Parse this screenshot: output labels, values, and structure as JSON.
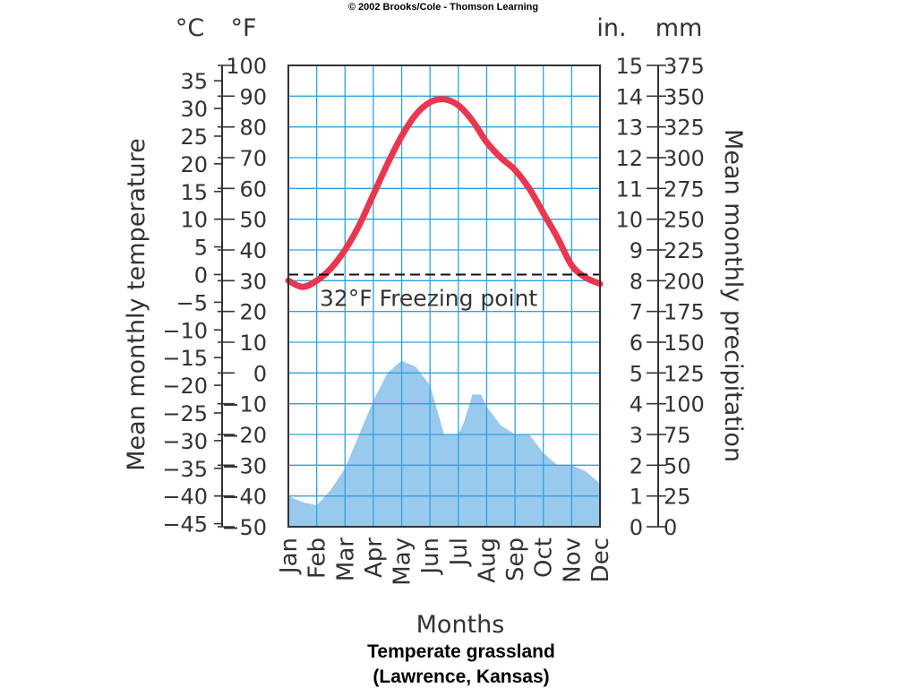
{
  "copyright": "© 2002 Brooks/Cole - Thomson Learning",
  "caption": {
    "line1": "Temperate grassland",
    "line2": "(Lawrence, Kansas)"
  },
  "colors": {
    "grid": "#2aa3df",
    "temperature_line": "#e8374f",
    "precipitation_fill": "#99c9ec",
    "axis": "#333333"
  },
  "chart_data": {
    "type": "line",
    "xlabel": "Months",
    "categories": [
      "Jan",
      "Feb",
      "Mar",
      "Apr",
      "May",
      "Jun",
      "Jul",
      "Aug",
      "Sep",
      "Oct",
      "Nov",
      "Dec"
    ],
    "left_axis": {
      "label": "Mean monthly temperature",
      "unit_celsius": "°C",
      "unit_fahrenheit": "°F",
      "celsius_ticks": [
        "35",
        "30",
        "25",
        "20",
        "15",
        "10",
        "5",
        "0",
        "−5",
        "−10",
        "−15",
        "−20",
        "−25",
        "−30",
        "−35",
        "−40",
        "−45"
      ],
      "fahrenheit_ticks": [
        "100",
        "90",
        "80",
        "70",
        "60",
        "50",
        "40",
        "30",
        "20",
        "10",
        "0",
        "−10",
        "−20",
        "−30",
        "−40",
        "−50"
      ],
      "fahrenheit_range": [
        -50,
        100
      ]
    },
    "right_axis": {
      "label": "Mean monthly precipitation",
      "unit_inches": "in.",
      "unit_mm": "mm",
      "inch_ticks": [
        "15",
        "14",
        "13",
        "12",
        "11",
        "10",
        "9",
        "8",
        "7",
        "6",
        "5",
        "4",
        "3",
        "2",
        "1",
        "0"
      ],
      "mm_ticks": [
        "375",
        "350",
        "325",
        "300",
        "275",
        "250",
        "225",
        "200",
        "175",
        "150",
        "125",
        "100",
        "75",
        "50",
        "25",
        "0"
      ],
      "inch_range": [
        0,
        15
      ]
    },
    "freezing_line": {
      "value_f": 32,
      "label": "32°F Freezing point"
    },
    "series": [
      {
        "kind": "line",
        "x": [
          0,
          0.5,
          1,
          1.5,
          2,
          2.5,
          3,
          3.5,
          4,
          4.5,
          5,
          5.5,
          6,
          6.5,
          7,
          7.5,
          8,
          8.5,
          9,
          9.5,
          10,
          10.5,
          11
        ],
        "y_fahrenheit": [
          30,
          28,
          30,
          34,
          40,
          48,
          58,
          68,
          77,
          84,
          88,
          89,
          87,
          82,
          75,
          70,
          66,
          60,
          52,
          44,
          35,
          31,
          29
        ]
      },
      {
        "kind": "area",
        "x": [
          0,
          0.5,
          1,
          1.5,
          2,
          2.5,
          3,
          3.5,
          4,
          4.5,
          5,
          5.5,
          6,
          6.2,
          6.5,
          6.8,
          7,
          7.5,
          8,
          8.5,
          9,
          9.5,
          10,
          10.5,
          11
        ],
        "y_inches": [
          1.0,
          0.8,
          0.7,
          1.2,
          1.9,
          3.0,
          4.1,
          5.0,
          5.4,
          5.2,
          4.6,
          3.0,
          3.0,
          3.4,
          4.3,
          4.3,
          3.9,
          3.3,
          3.0,
          3.0,
          2.4,
          2.0,
          2.0,
          1.8,
          1.4
        ]
      }
    ]
  }
}
